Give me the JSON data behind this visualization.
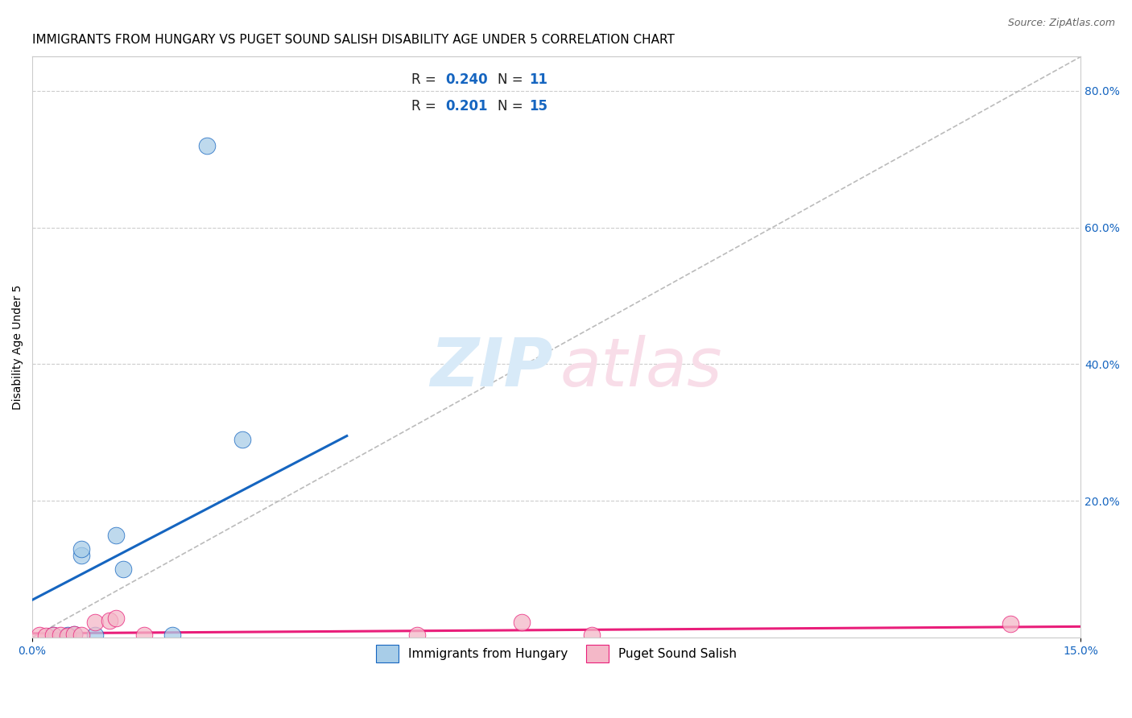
{
  "title": "IMMIGRANTS FROM HUNGARY VS PUGET SOUND SALISH DISABILITY AGE UNDER 5 CORRELATION CHART",
  "source": "Source: ZipAtlas.com",
  "ylabel": "Disability Age Under 5",
  "xlim": [
    0.0,
    0.15
  ],
  "ylim": [
    0.0,
    0.85
  ],
  "x_ticks": [
    0.0,
    0.15
  ],
  "x_tick_labels": [
    "0.0%",
    "15.0%"
  ],
  "y_ticks_right": [
    0.0,
    0.2,
    0.4,
    0.6,
    0.8
  ],
  "y_tick_labels_right": [
    "",
    "20.0%",
    "40.0%",
    "60.0%",
    "80.0%"
  ],
  "blue_scatter_x": [
    0.003,
    0.005,
    0.006,
    0.007,
    0.007,
    0.009,
    0.012,
    0.013,
    0.02,
    0.025,
    0.03
  ],
  "blue_scatter_y": [
    0.003,
    0.003,
    0.005,
    0.12,
    0.13,
    0.004,
    0.15,
    0.1,
    0.003,
    0.72,
    0.29
  ],
  "pink_scatter_x": [
    0.001,
    0.002,
    0.003,
    0.004,
    0.005,
    0.006,
    0.007,
    0.009,
    0.011,
    0.012,
    0.016,
    0.055,
    0.07,
    0.08,
    0.14
  ],
  "pink_scatter_y": [
    0.003,
    0.002,
    0.004,
    0.003,
    0.002,
    0.005,
    0.004,
    0.022,
    0.025,
    0.028,
    0.003,
    0.003,
    0.022,
    0.004,
    0.02
  ],
  "blue_line_x": [
    0.0,
    0.045
  ],
  "blue_line_y": [
    0.055,
    0.295
  ],
  "pink_line_x": [
    0.0,
    0.15
  ],
  "pink_line_y": [
    0.006,
    0.016
  ],
  "dashed_line_x": [
    0.0,
    0.15
  ],
  "dashed_line_y": [
    0.0,
    0.85
  ],
  "blue_color": "#a8cde8",
  "pink_color": "#f4b8c8",
  "blue_line_color": "#1565c0",
  "pink_line_color": "#e91e7a",
  "dashed_color": "#bbbbbb",
  "legend_blue_label": "Immigrants from Hungary",
  "legend_pink_label": "Puget Sound Salish",
  "r_blue_val": "0.240",
  "n_blue_val": "11",
  "r_pink_val": "0.201",
  "n_pink_val": "15",
  "scatter_size": 220,
  "grid_color": "#cccccc",
  "background_color": "#ffffff",
  "title_fontsize": 11,
  "axis_label_fontsize": 10,
  "tick_fontsize": 10,
  "watermark_zip_color": "#d8eaf8",
  "watermark_atlas_color": "#f8dde8"
}
